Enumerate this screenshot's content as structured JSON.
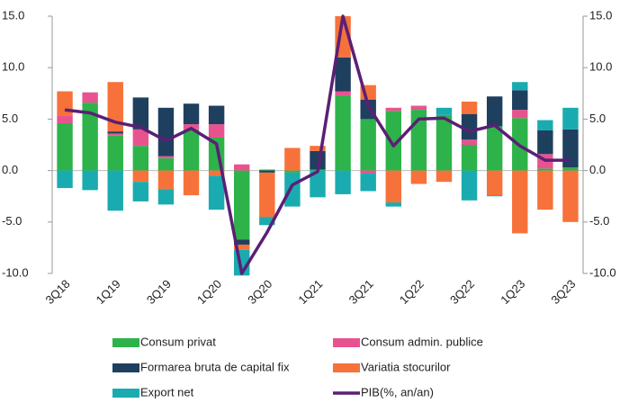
{
  "chart_data": {
    "type": "bar",
    "categories": [
      "3Q18",
      null,
      "1Q19",
      null,
      "3Q19",
      null,
      "1Q20",
      null,
      "3Q20",
      null,
      "1Q21",
      null,
      "3Q21",
      null,
      "1Q22",
      null,
      "3Q22",
      null,
      "1Q23",
      null,
      "3Q23"
    ],
    "ylim": [
      -10,
      15
    ],
    "yticks": [
      {
        "value": -10,
        "label": "-10.0"
      },
      {
        "value": -5,
        "label": "-5.0"
      },
      {
        "value": 0,
        "label": "0.0"
      },
      {
        "value": 5,
        "label": "5.0"
      },
      {
        "value": 10,
        "label": "10.0"
      },
      {
        "value": 15,
        "label": "15.0"
      }
    ],
    "y2lim": [
      -10,
      15
    ],
    "y2ticks": [
      {
        "value": -10,
        "label": "-10.0"
      },
      {
        "value": -5,
        "label": "-5.0"
      },
      {
        "value": 0,
        "label": "0.0"
      },
      {
        "value": 5,
        "label": "5.0"
      },
      {
        "value": 10,
        "label": "10.0"
      },
      {
        "value": 15,
        "label": "15.0"
      }
    ],
    "stacked": true,
    "series": [
      {
        "name": "Consum privat",
        "color": "#2db34a",
        "values": [
          4.6,
          6.6,
          3.4,
          2.4,
          1.2,
          4.0,
          3.2,
          -6.7,
          0.1,
          -0.2,
          0.1,
          7.3,
          5.0,
          5.8,
          5.9,
          5.4,
          2.5,
          4.3,
          5.1,
          0.2,
          0.3
        ]
      },
      {
        "name": "Consum admin. publice",
        "color": "#e8538f",
        "values": [
          0.7,
          1.0,
          0.2,
          1.6,
          0.2,
          0.5,
          1.3,
          0.6,
          0,
          0,
          0,
          0.4,
          -0.3,
          0.3,
          0.4,
          0,
          0.5,
          0,
          0.8,
          1.4,
          0
        ]
      },
      {
        "name": "Formarea bruta de capital fix",
        "color": "#1f3f5f",
        "values": [
          0,
          0,
          0.2,
          3.1,
          4.7,
          2.0,
          1.8,
          -0.5,
          -0.2,
          0,
          1.8,
          3.3,
          1.9,
          0,
          0,
          0,
          2.5,
          2.9,
          1.9,
          2.3,
          3.7
        ]
      },
      {
        "name": "Variatia stocurilor",
        "color": "#f7723a",
        "values": [
          2.4,
          0,
          4.8,
          -1.1,
          -1.8,
          -2.4,
          -0.5,
          -0.5,
          -4.3,
          2.2,
          0.5,
          4.0,
          1.4,
          -3.1,
          -1.3,
          -1.1,
          1.2,
          -2.4,
          -6.1,
          -3.8,
          -5.0
        ]
      },
      {
        "name": "Export net",
        "color": "#1aabb0",
        "values": [
          -1.7,
          -1.9,
          -3.9,
          -1.9,
          -1.5,
          0,
          -3.3,
          -2.5,
          -0.8,
          -3.3,
          -2.6,
          -2.3,
          -1.7,
          -0.4,
          0,
          0.7,
          -2.9,
          -0.1,
          0.8,
          1.0,
          2.1
        ]
      },
      {
        "name": "PIB(%, an/an)",
        "color": "#5b1f75",
        "type": "line",
        "axis": "y2",
        "values": [
          5.9,
          5.6,
          4.7,
          4.2,
          2.9,
          4.1,
          2.6,
          -10.0,
          -6.0,
          -1.4,
          -0.1,
          15.0,
          6.3,
          2.4,
          5.0,
          5.1,
          3.8,
          4.4,
          2.4,
          1.0,
          1.0
        ]
      }
    ]
  }
}
